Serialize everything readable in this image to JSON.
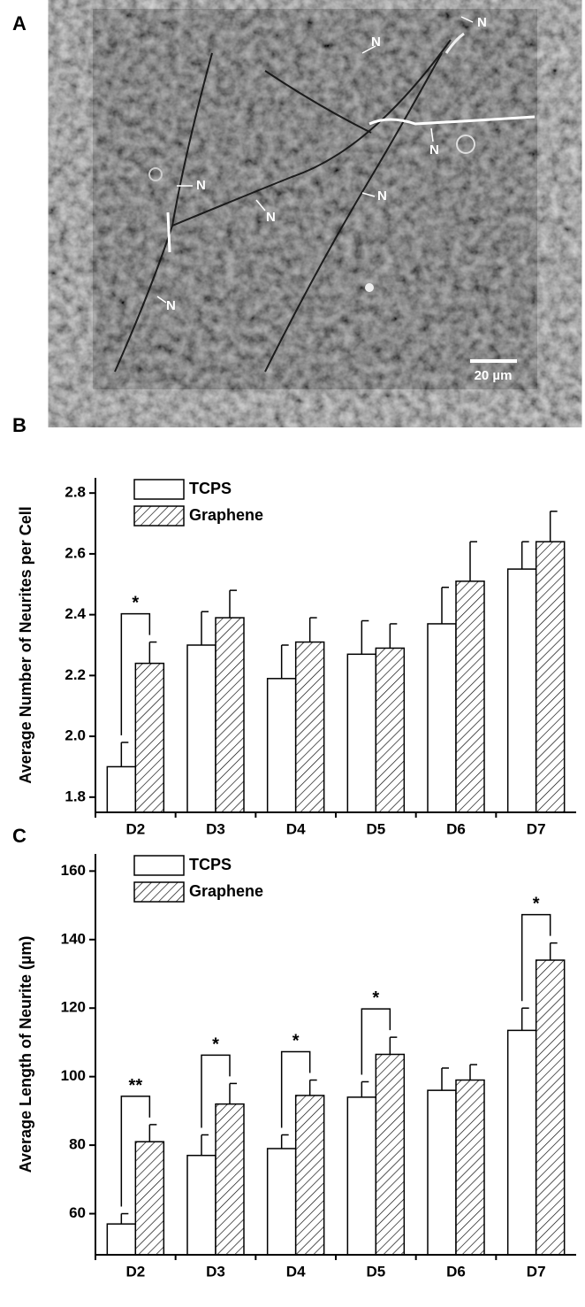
{
  "panel_a": {
    "label": "A",
    "annotations": [
      "N",
      "N",
      "N",
      "N",
      "N",
      "N",
      "N"
    ],
    "scale_bar": "20 µm"
  },
  "chart_data": [
    {
      "type": "bar",
      "panel": "B",
      "y_label": "Average Number of Neurites per Cell",
      "categories": [
        "D2",
        "D3",
        "D4",
        "D5",
        "D6",
        "D7"
      ],
      "series": [
        {
          "name": "TCPS",
          "color": "#ffffff",
          "hatch": false,
          "values": [
            1.9,
            2.3,
            2.19,
            2.27,
            2.37,
            2.55
          ],
          "errors": [
            0.08,
            0.11,
            0.11,
            0.11,
            0.12,
            0.09
          ]
        },
        {
          "name": "Graphene",
          "color": "#ffffff",
          "hatch": true,
          "values": [
            2.24,
            2.39,
            2.31,
            2.29,
            2.51,
            2.64
          ],
          "errors": [
            0.07,
            0.09,
            0.08,
            0.08,
            0.13,
            0.1
          ]
        }
      ],
      "ylim": [
        1.75,
        2.85
      ],
      "yticks": [
        {
          "value": 1.8,
          "label": "1.8"
        },
        {
          "value": 2.0,
          "label": "2.0"
        },
        {
          "value": 2.2,
          "label": "2.2"
        },
        {
          "value": 2.4,
          "label": "2.4"
        },
        {
          "value": 2.6,
          "label": "2.6"
        },
        {
          "value": 2.8,
          "label": "2.8"
        }
      ],
      "legend": "upper left",
      "annotations": [
        {
          "text": "*",
          "category": "D2"
        }
      ]
    },
    {
      "type": "bar",
      "panel": "C",
      "y_label": "Average Length of Neurite (µm)",
      "categories": [
        "D2",
        "D3",
        "D4",
        "D5",
        "D6",
        "D7"
      ],
      "series": [
        {
          "name": "TCPS",
          "color": "#ffffff",
          "hatch": false,
          "values": [
            57,
            77,
            79,
            94,
            96,
            113.5
          ],
          "errors": [
            3,
            6,
            4,
            4.5,
            6.5,
            6.5
          ]
        },
        {
          "name": "Graphene",
          "color": "#ffffff",
          "hatch": true,
          "values": [
            81,
            92,
            94.5,
            106.5,
            99,
            134
          ],
          "errors": [
            5,
            6,
            4.5,
            5,
            4.5,
            5
          ]
        }
      ],
      "ylim": [
        48,
        165
      ],
      "yticks": [
        60,
        80,
        100,
        120,
        140,
        160
      ],
      "legend": "upper left",
      "annotations": [
        {
          "text": "**",
          "category": "D2"
        },
        {
          "text": "*",
          "category": "D3"
        },
        {
          "text": "*",
          "category": "D4"
        },
        {
          "text": "*",
          "category": "D5"
        },
        {
          "text": "*",
          "category": "D7"
        }
      ]
    }
  ]
}
